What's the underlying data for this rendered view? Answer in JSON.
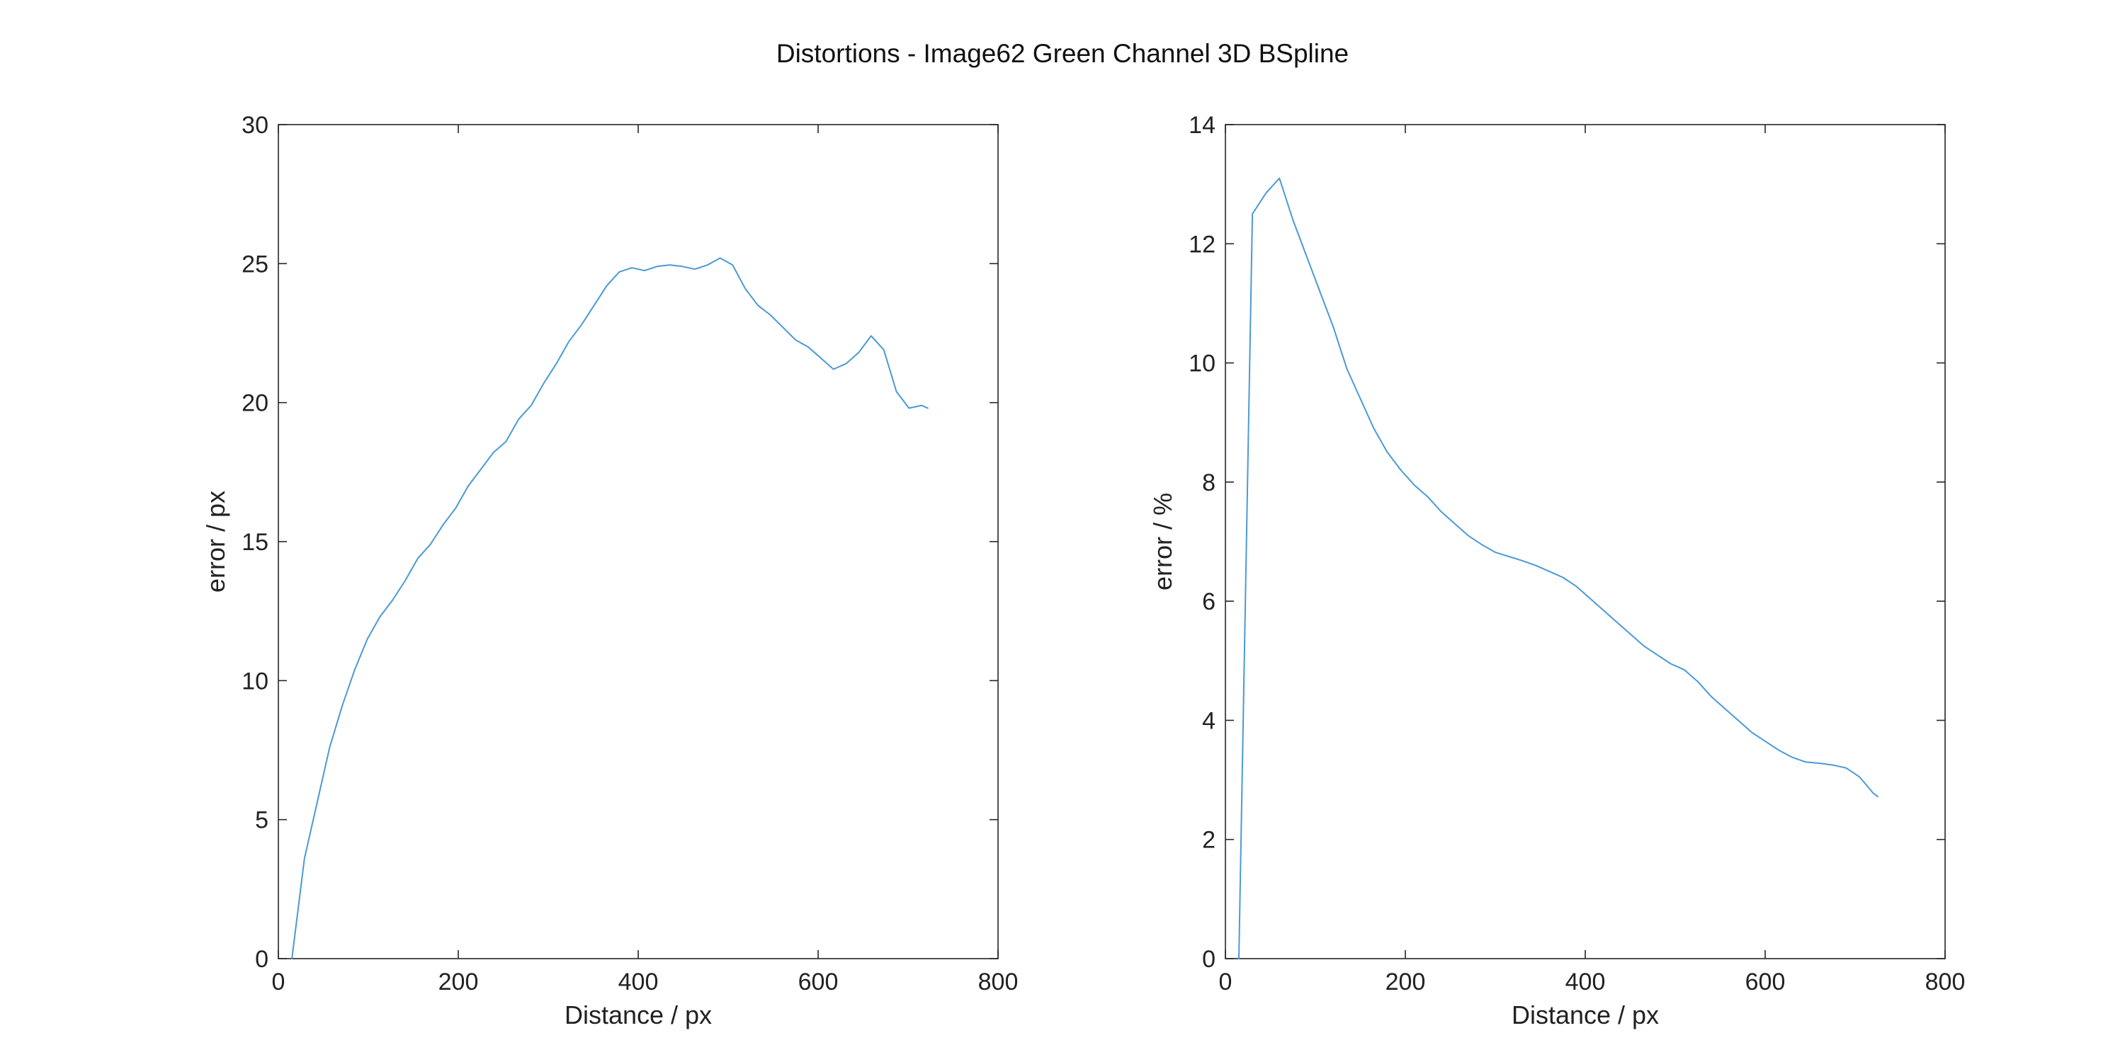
{
  "figure": {
    "title": "Distortions - Image62 Green Channel 3D BSpline"
  },
  "chart_data": [
    {
      "type": "line",
      "title": "",
      "xlabel": "Distance / px",
      "ylabel": "error / px",
      "xlim": [
        0,
        800
      ],
      "ylim": [
        0,
        30
      ],
      "xticks": [
        0,
        200,
        400,
        600,
        800
      ],
      "yticks": [
        0,
        5,
        10,
        15,
        20,
        25,
        30
      ],
      "grid": false,
      "line_color": "#4a9ad6",
      "series": [
        {
          "x": [
            15,
            29,
            43,
            57,
            71,
            85,
            99,
            113,
            127,
            141,
            155,
            169,
            183,
            197,
            211,
            225,
            239,
            253,
            267,
            281,
            295,
            309,
            323,
            337,
            351,
            365,
            379,
            393,
            407,
            421,
            435,
            449,
            463,
            477,
            491,
            505,
            519,
            533,
            547,
            561,
            575,
            589,
            603,
            617,
            631,
            645,
            659,
            673,
            687,
            701,
            715,
            722
          ],
          "y": [
            0,
            3.6,
            5.6,
            7.6,
            9.1,
            10.4,
            11.5,
            12.3,
            12.9,
            13.6,
            14.4,
            14.9,
            15.6,
            16.2,
            17.0,
            17.6,
            18.2,
            18.6,
            19.4,
            19.9,
            20.7,
            21.4,
            22.2,
            22.8,
            23.5,
            24.2,
            24.7,
            24.85,
            24.75,
            24.9,
            24.95,
            24.9,
            24.8,
            24.95,
            25.2,
            24.95,
            24.1,
            23.5,
            23.15,
            22.7,
            22.25,
            22.0,
            21.6,
            21.2,
            21.4,
            21.8,
            22.4,
            21.9,
            20.4,
            19.8,
            19.9,
            19.8
          ]
        }
      ]
    },
    {
      "type": "line",
      "title": "",
      "xlabel": "Distance / px",
      "ylabel": "error / %",
      "xlim": [
        0,
        800
      ],
      "ylim": [
        0,
        14
      ],
      "xticks": [
        0,
        200,
        400,
        600,
        800
      ],
      "yticks": [
        0,
        2,
        4,
        6,
        8,
        10,
        12,
        14
      ],
      "grid": false,
      "line_color": "#4a9ad6",
      "series": [
        {
          "x": [
            15,
            30,
            45,
            60,
            75,
            90,
            105,
            120,
            135,
            150,
            165,
            180,
            195,
            210,
            225,
            240,
            255,
            270,
            285,
            300,
            315,
            330,
            345,
            360,
            375,
            390,
            405,
            420,
            435,
            450,
            465,
            480,
            495,
            510,
            525,
            540,
            555,
            570,
            585,
            600,
            615,
            630,
            645,
            660,
            675,
            690,
            705,
            720,
            725
          ],
          "y": [
            0,
            12.5,
            12.85,
            13.1,
            12.4,
            11.8,
            11.2,
            10.6,
            9.9,
            9.4,
            8.9,
            8.5,
            8.2,
            7.95,
            7.75,
            7.5,
            7.3,
            7.1,
            6.95,
            6.82,
            6.75,
            6.68,
            6.6,
            6.5,
            6.4,
            6.25,
            6.05,
            5.85,
            5.65,
            5.45,
            5.25,
            5.1,
            4.95,
            4.85,
            4.65,
            4.4,
            4.2,
            4.0,
            3.8,
            3.65,
            3.5,
            3.38,
            3.3,
            3.28,
            3.25,
            3.2,
            3.05,
            2.78,
            2.72
          ]
        }
      ]
    }
  ]
}
